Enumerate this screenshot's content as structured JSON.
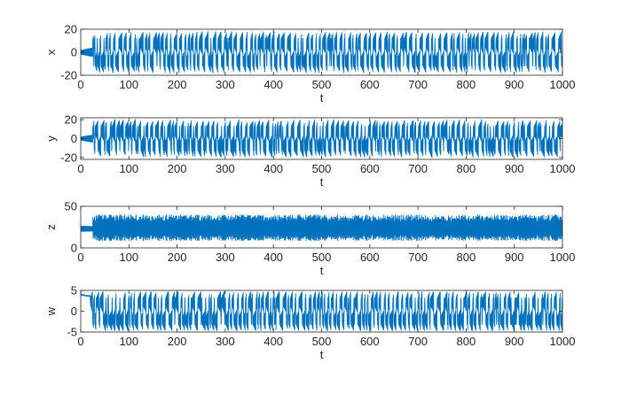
{
  "chart_data": [
    {
      "type": "line",
      "xlabel": "t",
      "ylabel": "x",
      "xlim": [
        0,
        1000
      ],
      "ylim": [
        -20,
        20
      ],
      "xticks": [
        0,
        100,
        200,
        300,
        400,
        500,
        600,
        700,
        800,
        900,
        1000
      ],
      "yticks": [
        -20,
        0,
        20
      ],
      "ytick_labels": [
        "-20",
        "0",
        "20"
      ],
      "color": "#0072BD",
      "grid": false,
      "signal": {
        "kind": "switching",
        "t0": 0,
        "t1": 1000,
        "settle": 25,
        "init_amp": 4,
        "osc_amp_min": 4,
        "osc_amp_max": 10,
        "center": 8,
        "clip": 20,
        "seed": 11
      }
    },
    {
      "type": "line",
      "xlabel": "t",
      "ylabel": "y",
      "xlim": [
        0,
        1000
      ],
      "ylim": [
        -22,
        22
      ],
      "xticks": [
        0,
        100,
        200,
        300,
        400,
        500,
        600,
        700,
        800,
        900,
        1000
      ],
      "yticks": [
        -20,
        0,
        20
      ],
      "ytick_labels": [
        "-20",
        "0",
        "20"
      ],
      "color": "#0072BD",
      "grid": false,
      "signal": {
        "kind": "switching",
        "t0": 0,
        "t1": 1000,
        "settle": 25,
        "init_amp": 4,
        "osc_amp_min": 5,
        "osc_amp_max": 12,
        "center": 8,
        "clip": 21,
        "seed": 23
      }
    },
    {
      "type": "line",
      "xlabel": "t",
      "ylabel": "z",
      "xlim": [
        0,
        1000
      ],
      "ylim": [
        0,
        50
      ],
      "xticks": [
        0,
        100,
        200,
        300,
        400,
        500,
        600,
        700,
        800,
        900,
        1000
      ],
      "yticks": [
        0,
        50
      ],
      "ytick_labels": [
        "0",
        "50"
      ],
      "color": "#0072BD",
      "grid": false,
      "signal": {
        "kind": "oscillating",
        "t0": 0,
        "t1": 1000,
        "settle": 25,
        "mean": 23,
        "init_amp": 3,
        "amp_min": 8,
        "amp_max": 16,
        "clip_low": 3,
        "clip_high": 40,
        "seed": 37
      }
    },
    {
      "type": "line",
      "xlabel": "t",
      "ylabel": "w",
      "xlim": [
        0,
        1000
      ],
      "ylim": [
        -5,
        5
      ],
      "xticks": [
        0,
        100,
        200,
        300,
        400,
        500,
        600,
        700,
        800,
        900,
        1000
      ],
      "yticks": [
        -5,
        0,
        5
      ],
      "ytick_labels": [
        "-5",
        "0",
        "5"
      ],
      "color": "#0072BD",
      "grid": false,
      "signal": {
        "kind": "switching",
        "t0": 0,
        "t1": 1000,
        "settle": 20,
        "init_level": 4,
        "osc_amp_min": 1.0,
        "osc_amp_max": 2.8,
        "center": 2.2,
        "clip": 4.6,
        "seed": 53
      }
    }
  ]
}
